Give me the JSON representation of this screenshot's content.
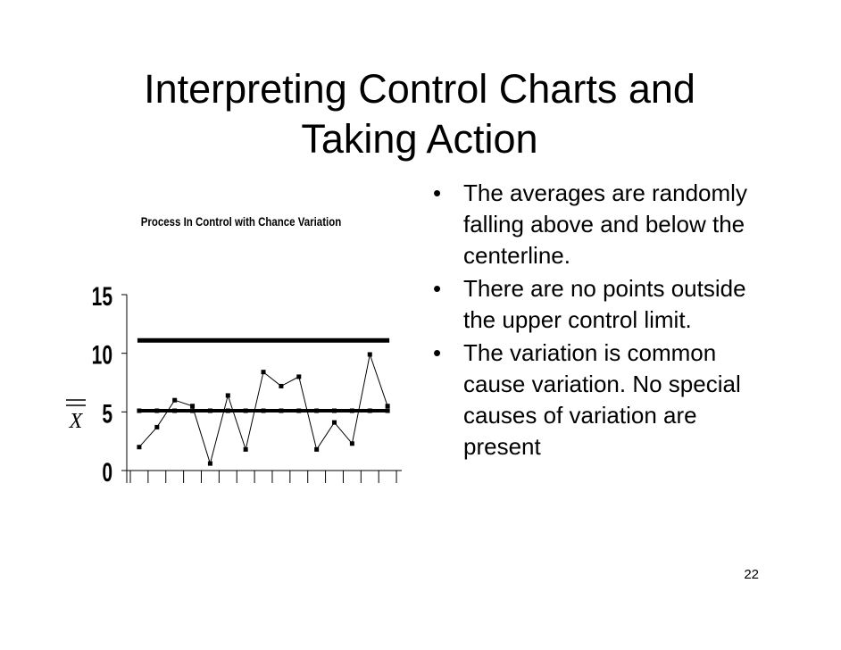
{
  "slide": {
    "title_line1": "Interpreting Control Charts and",
    "title_line2": "Taking Action",
    "page_number": "22",
    "bullets": [
      "The averages are randomly falling above and below the centerline.",
      "There are no points outside the upper control limit.",
      "The variation is common cause variation.  No special causes of variation are present"
    ],
    "bullet_symbol": "•"
  },
  "chart_data": {
    "type": "line",
    "title": "Process In Control with Chance Variation",
    "y_axis_symbol": "X",
    "ylim": [
      0,
      15
    ],
    "yticks": [
      0,
      5,
      10,
      15
    ],
    "grid": false,
    "series": [
      {
        "values": [
          2.0,
          3.7,
          6.0,
          5.5,
          0.6,
          6.4,
          1.8,
          8.4,
          7.2,
          8.0,
          1.8,
          4.1,
          2.3,
          9.9,
          5.5
        ]
      }
    ],
    "centerline": 5.1,
    "upper_control_limit": 11.1,
    "colors": {
      "line": "#000000",
      "background": "#ffffff"
    }
  }
}
